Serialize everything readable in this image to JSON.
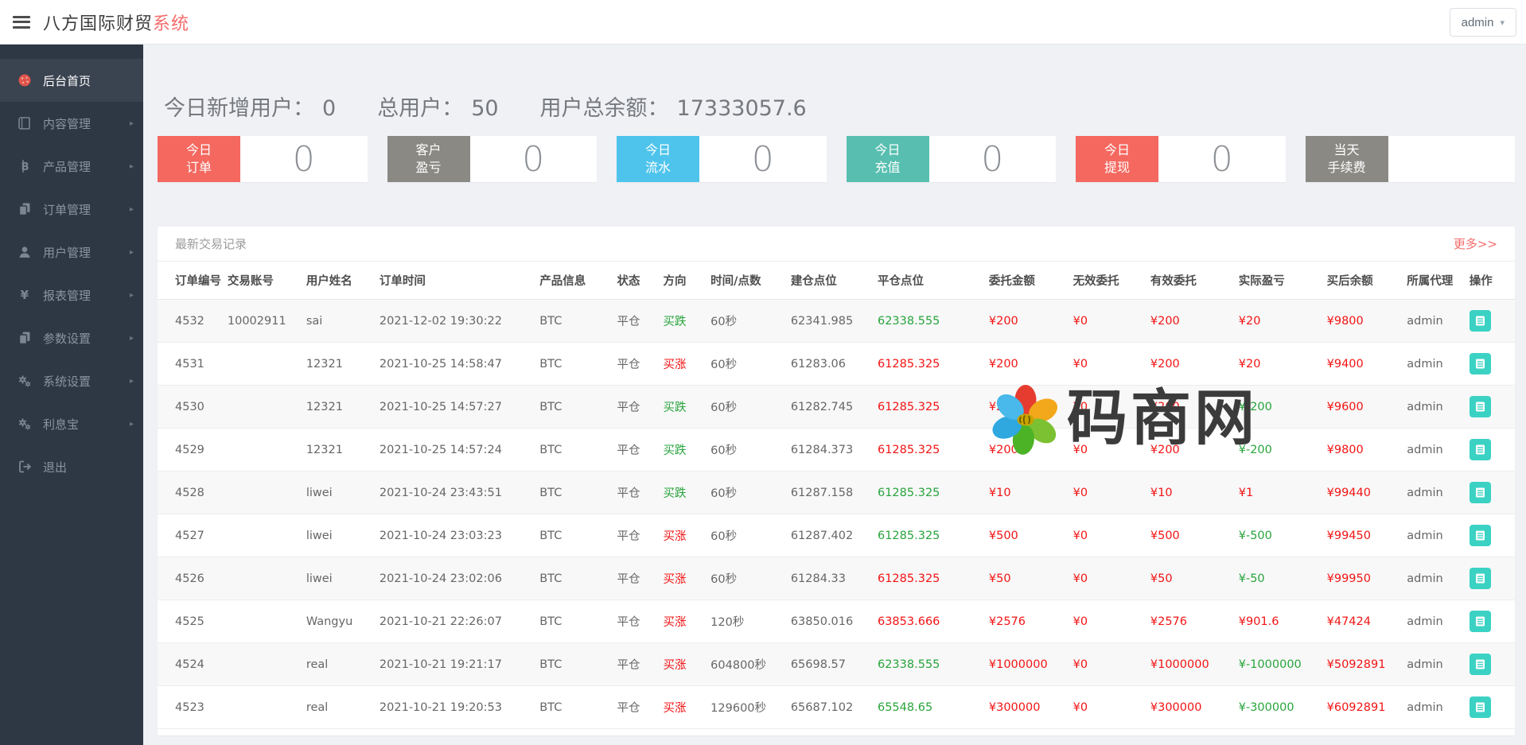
{
  "header": {
    "title_main": "八方国际财贸",
    "title_accent": "系统",
    "user_menu_label": "admin"
  },
  "sidebar": {
    "items": [
      {
        "label": "后台首页",
        "icon": "dashboard-icon",
        "key": "dashboard",
        "active": true,
        "arrow": false
      },
      {
        "label": "内容管理",
        "icon": "book-icon",
        "key": "content",
        "active": false,
        "arrow": true
      },
      {
        "label": "产品管理",
        "icon": "bitcoin-icon",
        "key": "products",
        "active": false,
        "arrow": true
      },
      {
        "label": "订单管理",
        "icon": "orders-icon",
        "key": "orders",
        "active": false,
        "arrow": true
      },
      {
        "label": "用户管理",
        "icon": "user-icon",
        "key": "users",
        "active": false,
        "arrow": true
      },
      {
        "label": "报表管理",
        "icon": "yen-icon",
        "key": "reports",
        "active": false,
        "arrow": true
      },
      {
        "label": "参数设置",
        "icon": "params-icon",
        "key": "params",
        "active": false,
        "arrow": true
      },
      {
        "label": "系统设置",
        "icon": "gears-icon",
        "key": "system",
        "active": false,
        "arrow": true
      },
      {
        "label": "利息宝",
        "icon": "gears-icon",
        "key": "interest",
        "active": false,
        "arrow": true
      },
      {
        "label": "退出",
        "icon": "logout-icon",
        "key": "logout",
        "active": false,
        "arrow": false
      }
    ]
  },
  "stats": [
    {
      "label": "今日新增用户：",
      "value": "0"
    },
    {
      "label": "总用户：",
      "value": "50"
    },
    {
      "label": "用户总余额：",
      "value": "17333057.6"
    }
  ],
  "cards": [
    {
      "key": "today-orders",
      "line1": "今日",
      "line2": "订单",
      "value": "0",
      "color": "#f4685f"
    },
    {
      "key": "customer-pnl",
      "line1": "客户",
      "line2": "盈亏",
      "value": "0",
      "color": "#8b8984"
    },
    {
      "key": "today-flow",
      "line1": "今日",
      "line2": "流水",
      "value": "0",
      "color": "#4ec4ec"
    },
    {
      "key": "today-recharge",
      "line1": "今日",
      "line2": "充值",
      "value": "0",
      "color": "#58bfb0"
    },
    {
      "key": "today-withdraw",
      "line1": "今日",
      "line2": "提现",
      "value": "0",
      "color": "#f4685f"
    },
    {
      "key": "today-fee",
      "line1": "当天",
      "line2": "手续费",
      "value": "",
      "color": "#8b8984"
    }
  ],
  "table": {
    "title": "最新交易记录",
    "more_label": "更多>>",
    "columns": [
      "订单编号",
      "交易账号",
      "用户姓名",
      "订单时间",
      "产品信息",
      "状态",
      "方向",
      "时间/点数",
      "建仓点位",
      "平仓点位",
      "委托金额",
      "无效委托",
      "有效委托",
      "实际盈亏",
      "买后余额",
      "所属代理",
      "操作"
    ],
    "rows": [
      {
        "id": "4532",
        "account": "10002911",
        "name": "sai",
        "time": "2021-12-02 19:30:22",
        "product": "BTC",
        "status": "平仓",
        "dir": "买跌",
        "dir_color": "green",
        "period": "60秒",
        "open": "62341.985",
        "close": "62338.555",
        "close_color": "green",
        "amount": "¥200",
        "invalid": "¥0",
        "valid": "¥200",
        "profit": "¥20",
        "profit_color": "red",
        "balance": "¥9800",
        "agent": "admin"
      },
      {
        "id": "4531",
        "account": "",
        "name": "12321",
        "time": "2021-10-25 14:58:47",
        "product": "BTC",
        "status": "平仓",
        "dir": "买涨",
        "dir_color": "red",
        "period": "60秒",
        "open": "61283.06",
        "close": "61285.325",
        "close_color": "red",
        "amount": "¥200",
        "invalid": "¥0",
        "valid": "¥200",
        "profit": "¥20",
        "profit_color": "red",
        "balance": "¥9400",
        "agent": "admin"
      },
      {
        "id": "4530",
        "account": "",
        "name": "12321",
        "time": "2021-10-25 14:57:27",
        "product": "BTC",
        "status": "平仓",
        "dir": "买跌",
        "dir_color": "green",
        "period": "60秒",
        "open": "61282.745",
        "close": "61285.325",
        "close_color": "red",
        "amount": "¥200",
        "invalid": "¥0",
        "valid": "¥200",
        "profit": "¥-200",
        "profit_color": "green",
        "balance": "¥9600",
        "agent": "admin"
      },
      {
        "id": "4529",
        "account": "",
        "name": "12321",
        "time": "2021-10-25 14:57:24",
        "product": "BTC",
        "status": "平仓",
        "dir": "买跌",
        "dir_color": "green",
        "period": "60秒",
        "open": "61284.373",
        "close": "61285.325",
        "close_color": "red",
        "amount": "¥200",
        "invalid": "¥0",
        "valid": "¥200",
        "profit": "¥-200",
        "profit_color": "green",
        "balance": "¥9800",
        "agent": "admin"
      },
      {
        "id": "4528",
        "account": "",
        "name": "liwei",
        "time": "2021-10-24 23:43:51",
        "product": "BTC",
        "status": "平仓",
        "dir": "买跌",
        "dir_color": "green",
        "period": "60秒",
        "open": "61287.158",
        "close": "61285.325",
        "close_color": "green",
        "amount": "¥10",
        "invalid": "¥0",
        "valid": "¥10",
        "profit": "¥1",
        "profit_color": "red",
        "balance": "¥99440",
        "agent": "admin"
      },
      {
        "id": "4527",
        "account": "",
        "name": "liwei",
        "time": "2021-10-24 23:03:23",
        "product": "BTC",
        "status": "平仓",
        "dir": "买涨",
        "dir_color": "red",
        "period": "60秒",
        "open": "61287.402",
        "close": "61285.325",
        "close_color": "green",
        "amount": "¥500",
        "invalid": "¥0",
        "valid": "¥500",
        "profit": "¥-500",
        "profit_color": "green",
        "balance": "¥99450",
        "agent": "admin"
      },
      {
        "id": "4526",
        "account": "",
        "name": "liwei",
        "time": "2021-10-24 23:02:06",
        "product": "BTC",
        "status": "平仓",
        "dir": "买涨",
        "dir_color": "red",
        "period": "60秒",
        "open": "61284.33",
        "close": "61285.325",
        "close_color": "red",
        "amount": "¥50",
        "invalid": "¥0",
        "valid": "¥50",
        "profit": "¥-50",
        "profit_color": "green",
        "balance": "¥99950",
        "agent": "admin"
      },
      {
        "id": "4525",
        "account": "",
        "name": "Wangyu",
        "time": "2021-10-21 22:26:07",
        "product": "BTC",
        "status": "平仓",
        "dir": "买涨",
        "dir_color": "red",
        "period": "120秒",
        "open": "63850.016",
        "close": "63853.666",
        "close_color": "red",
        "amount": "¥2576",
        "invalid": "¥0",
        "valid": "¥2576",
        "profit": "¥901.6",
        "profit_color": "red",
        "balance": "¥47424",
        "agent": "admin"
      },
      {
        "id": "4524",
        "account": "",
        "name": "real",
        "time": "2021-10-21 19:21:17",
        "product": "BTC",
        "status": "平仓",
        "dir": "买涨",
        "dir_color": "red",
        "period": "604800秒",
        "open": "65698.57",
        "close": "62338.555",
        "close_color": "green",
        "amount": "¥1000000",
        "invalid": "¥0",
        "valid": "¥1000000",
        "profit": "¥-1000000",
        "profit_color": "green",
        "balance": "¥5092891",
        "agent": "admin"
      },
      {
        "id": "4523",
        "account": "",
        "name": "real",
        "time": "2021-10-21 19:20:53",
        "product": "BTC",
        "status": "平仓",
        "dir": "买涨",
        "dir_color": "red",
        "period": "129600秒",
        "open": "65687.102",
        "close": "65548.65",
        "close_color": "green",
        "amount": "¥300000",
        "invalid": "¥0",
        "valid": "¥300000",
        "profit": "¥-300000",
        "profit_color": "green",
        "balance": "¥6092891",
        "agent": "admin"
      }
    ]
  },
  "watermark": {
    "text": "码商网"
  },
  "colors": {
    "accent_red": "#f56c6c",
    "value_red": "#f31414",
    "value_green": "#28a43c",
    "op_button_teal": "#3bd2c4",
    "sidebar_bg": "#2e3845"
  }
}
